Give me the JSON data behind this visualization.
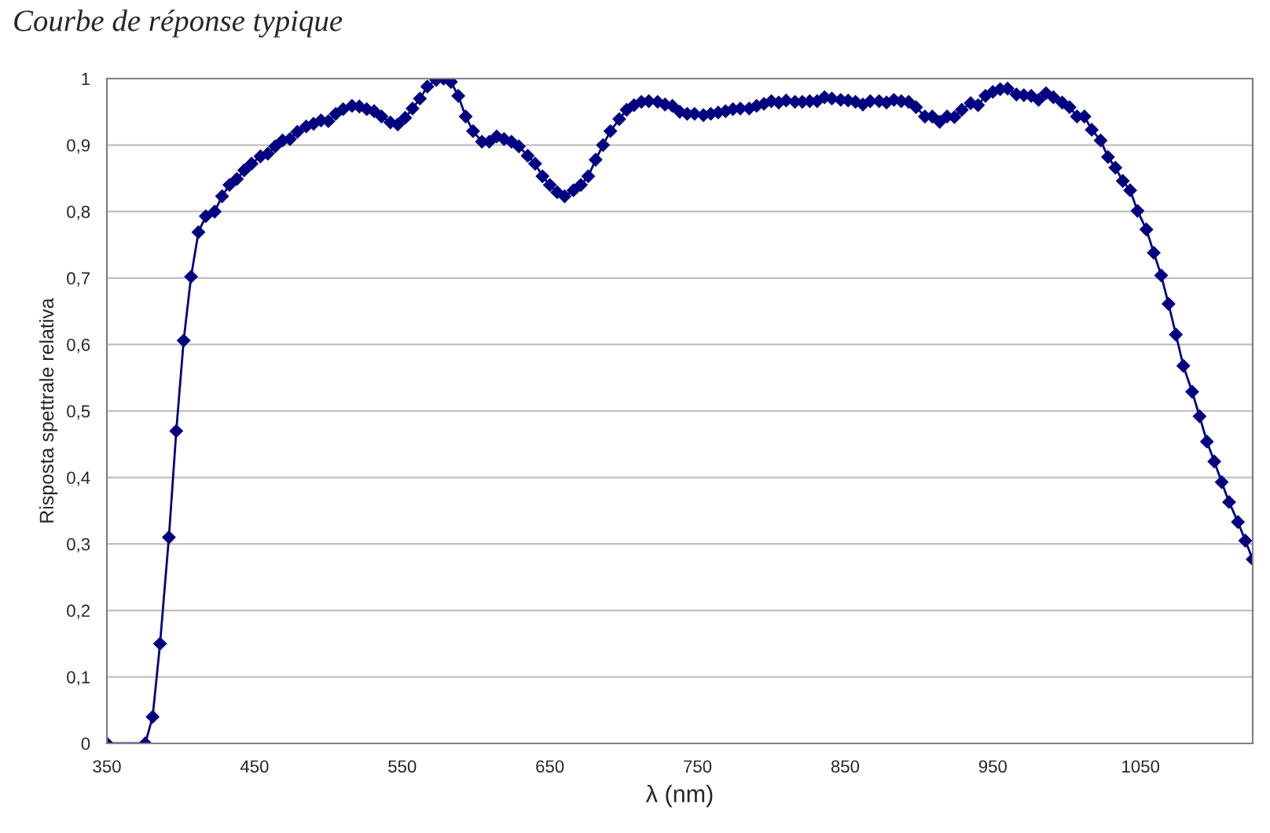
{
  "chart_data": {
    "type": "line",
    "title": "Courbe de réponse typique",
    "xlabel": "λ (nm)",
    "ylabel": "Risposta spettrale relativa",
    "xlim": [
      350,
      1126
    ],
    "xticks": [
      350,
      450,
      550,
      650,
      750,
      850,
      950,
      1050
    ],
    "ylim": [
      0,
      1
    ],
    "yticks": [
      {
        "value": 0,
        "label": "0"
      },
      {
        "value": 0.1,
        "label": "0,1"
      },
      {
        "value": 0.2,
        "label": "0,2"
      },
      {
        "value": 0.3,
        "label": "0,3"
      },
      {
        "value": 0.4,
        "label": "0,4"
      },
      {
        "value": 0.5,
        "label": "0,5"
      },
      {
        "value": 0.6,
        "label": "0,6"
      },
      {
        "value": 0.7,
        "label": "0,7"
      },
      {
        "value": 0.8,
        "label": "0,8"
      },
      {
        "value": 0.9,
        "label": "0,9"
      },
      {
        "value": 1,
        "label": "1"
      }
    ],
    "grid": "y",
    "marker": "diamond",
    "line_style": "solid",
    "x": [
      350,
      376,
      381,
      386,
      392,
      397,
      402,
      407,
      412,
      417,
      423,
      428,
      433,
      438,
      443,
      448,
      454,
      459,
      464,
      469,
      474,
      479,
      485,
      490,
      495,
      500,
      505,
      510,
      516,
      521,
      526,
      531,
      536,
      542,
      547,
      552,
      557,
      562,
      567,
      573,
      578,
      583,
      588,
      593,
      598,
      604,
      609,
      614,
      619,
      624,
      629,
      635,
      640,
      645,
      650,
      655,
      660,
      666,
      671,
      676,
      681,
      686,
      691,
      697,
      702,
      707,
      712,
      717,
      723,
      728,
      733,
      738,
      743,
      748,
      754,
      759,
      764,
      769,
      774,
      779,
      785,
      790,
      795,
      800,
      805,
      810,
      816,
      821,
      826,
      831,
      836,
      841,
      847,
      852,
      857,
      862,
      867,
      873,
      878,
      883,
      888,
      893,
      898,
      904,
      909,
      914,
      919,
      924,
      929,
      935,
      940,
      945,
      950,
      955,
      960,
      966,
      971,
      976,
      981,
      986,
      991,
      997,
      1002,
      1007,
      1012,
      1017,
      1023,
      1028,
      1033,
      1038,
      1043,
      1048,
      1054,
      1059,
      1064,
      1069,
      1074,
      1079,
      1085,
      1090,
      1095,
      1100,
      1105,
      1110,
      1116,
      1121,
      1126
    ],
    "series": [
      {
        "color": "#000080",
        "values": [
          0,
          0,
          0.04,
          0.15,
          0.31,
          0.47,
          0.606,
          0.702,
          0.769,
          0.793,
          0.8,
          0.823,
          0.84,
          0.849,
          0.862,
          0.872,
          0.883,
          0.887,
          0.898,
          0.907,
          0.909,
          0.92,
          0.928,
          0.932,
          0.937,
          0.936,
          0.947,
          0.954,
          0.959,
          0.958,
          0.954,
          0.951,
          0.943,
          0.934,
          0.931,
          0.941,
          0.955,
          0.97,
          0.988,
          0.998,
          1.0,
          0.995,
          0.974,
          0.943,
          0.921,
          0.905,
          0.905,
          0.913,
          0.909,
          0.905,
          0.898,
          0.884,
          0.872,
          0.853,
          0.84,
          0.829,
          0.823,
          0.832,
          0.84,
          0.853,
          0.878,
          0.9,
          0.921,
          0.939,
          0.953,
          0.96,
          0.965,
          0.966,
          0.965,
          0.961,
          0.959,
          0.95,
          0.947,
          0.947,
          0.945,
          0.947,
          0.949,
          0.951,
          0.954,
          0.955,
          0.955,
          0.959,
          0.962,
          0.966,
          0.964,
          0.967,
          0.965,
          0.965,
          0.966,
          0.966,
          0.972,
          0.97,
          0.968,
          0.967,
          0.965,
          0.961,
          0.966,
          0.966,
          0.964,
          0.968,
          0.966,
          0.965,
          0.957,
          0.943,
          0.943,
          0.935,
          0.943,
          0.942,
          0.953,
          0.963,
          0.96,
          0.974,
          0.98,
          0.984,
          0.985,
          0.976,
          0.975,
          0.974,
          0.968,
          0.978,
          0.972,
          0.964,
          0.957,
          0.943,
          0.943,
          0.923,
          0.907,
          0.882,
          0.866,
          0.846,
          0.832,
          0.801,
          0.773,
          0.738,
          0.704,
          0.661,
          0.615,
          0.568,
          0.529,
          0.492,
          0.454,
          0.424,
          0.393,
          0.363,
          0.333,
          0.305,
          0.277
        ]
      }
    ]
  }
}
